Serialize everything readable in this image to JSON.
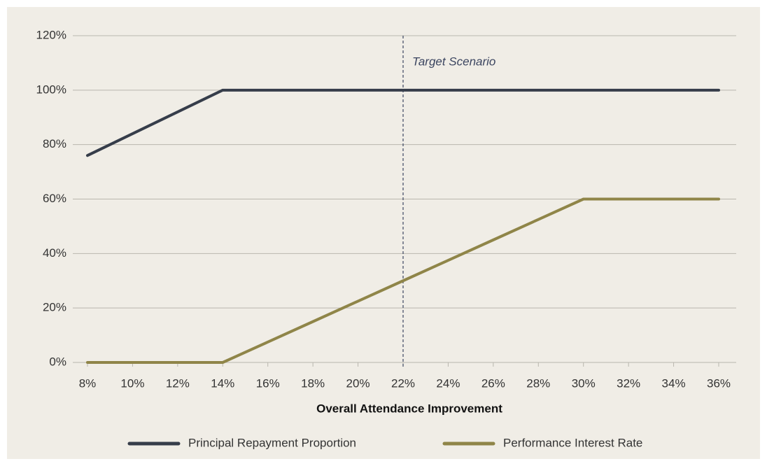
{
  "chart_data": {
    "type": "line",
    "x": [
      8,
      10,
      12,
      14,
      16,
      18,
      20,
      22,
      24,
      26,
      28,
      30,
      32,
      34,
      36
    ],
    "series": [
      {
        "name": "Principal Repayment Proportion",
        "color": "#363d4a",
        "values": [
          76,
          84,
          92,
          100,
          100,
          100,
          100,
          100,
          100,
          100,
          100,
          100,
          100,
          100,
          100
        ]
      },
      {
        "name": "Performance Interest Rate",
        "color": "#8f8548",
        "values": [
          0,
          0,
          0,
          0,
          7.5,
          15,
          22.5,
          30,
          37.5,
          45,
          52.5,
          60,
          60,
          60,
          60
        ]
      }
    ],
    "xlabel": "Overall Attendance Improvement",
    "xlim": [
      8,
      36
    ],
    "xticks": [
      {
        "value": 8,
        "label": "8%"
      },
      {
        "value": 10,
        "label": "10%"
      },
      {
        "value": 12,
        "label": "12%"
      },
      {
        "value": 14,
        "label": "14%"
      },
      {
        "value": 16,
        "label": "16%"
      },
      {
        "value": 18,
        "label": "18%"
      },
      {
        "value": 20,
        "label": "20%"
      },
      {
        "value": 22,
        "label": "22%"
      },
      {
        "value": 24,
        "label": "24%"
      },
      {
        "value": 26,
        "label": "26%"
      },
      {
        "value": 28,
        "label": "28%"
      },
      {
        "value": 30,
        "label": "30%"
      },
      {
        "value": 32,
        "label": "32%"
      },
      {
        "value": 34,
        "label": "34%"
      },
      {
        "value": 36,
        "label": "36%"
      }
    ],
    "ylim": [
      0,
      120
    ],
    "yticks": [
      {
        "value": 0,
        "label": "0%"
      },
      {
        "value": 20,
        "label": "20%"
      },
      {
        "value": 40,
        "label": "40%"
      },
      {
        "value": 60,
        "label": "60%"
      },
      {
        "value": 80,
        "label": "80%"
      },
      {
        "value": 100,
        "label": "100%"
      },
      {
        "value": 120,
        "label": "120%"
      }
    ],
    "grid": true,
    "legend": "bottom",
    "annotation": {
      "x": 22,
      "text": "Target Scenario"
    }
  }
}
